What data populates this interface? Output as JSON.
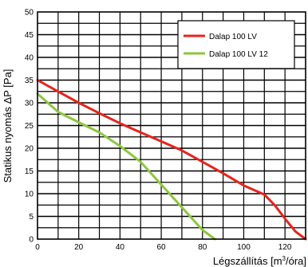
{
  "chart_data": {
    "type": "line",
    "ylabel": "Statikus nyomás ΔP [Pa]",
    "xlabel_text": "Légszállítás [m",
    "xlabel_sup": "3",
    "xlabel_end": "/óra]",
    "xlim": [
      0,
      130
    ],
    "ylim": [
      0,
      50
    ],
    "x_ticks": [
      0,
      20,
      40,
      60,
      80,
      100,
      120
    ],
    "y_ticks": [
      0,
      5,
      10,
      15,
      20,
      25,
      30,
      35,
      40,
      45,
      50
    ],
    "x_grid_step": 10,
    "y_grid_step": 2.5,
    "grid": true,
    "legend_position": "top-right",
    "series": [
      {
        "name": "Dalap 100 LV",
        "color": "#e8231c",
        "x": [
          0,
          10,
          20,
          30,
          40,
          50,
          60,
          70,
          80,
          90,
          100,
          110,
          115,
          120,
          125,
          130
        ],
        "y": [
          35,
          32.5,
          30,
          27.7,
          25.5,
          23.5,
          21.5,
          19.5,
          17,
          14.5,
          11.8,
          9.8,
          7.5,
          4.5,
          1.7,
          0
        ]
      },
      {
        "name": "Dalap 100 LV 12",
        "color": "#8dc63f",
        "x": [
          0,
          10,
          20,
          30,
          40,
          50,
          60,
          70,
          80,
          86
        ],
        "y": [
          32,
          28,
          25.7,
          23.5,
          20.5,
          17,
          12,
          7,
          2,
          0
        ]
      }
    ]
  }
}
